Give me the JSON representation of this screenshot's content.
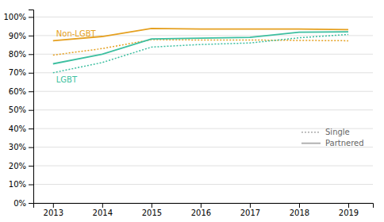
{
  "chart_data": {
    "type": "line",
    "x": [
      2013,
      2014,
      2015,
      2016,
      2017,
      2018,
      2019
    ],
    "xlim": [
      2012.6,
      2019.5
    ],
    "xticks": [
      2013,
      2014,
      2015,
      2016,
      2017,
      2018,
      2019
    ],
    "ylim": [
      0.0,
      1.04
    ],
    "yticks": [
      {
        "value": 0.0,
        "label": "0%"
      },
      {
        "value": 0.1,
        "label": "10%"
      },
      {
        "value": 0.2,
        "label": "20%"
      },
      {
        "value": 0.3,
        "label": "30%"
      },
      {
        "value": 0.4,
        "label": "40%"
      },
      {
        "value": 0.5,
        "label": "50%"
      },
      {
        "value": 0.6,
        "label": "60%"
      },
      {
        "value": 0.7,
        "label": "70%"
      },
      {
        "value": 0.8,
        "label": "80%"
      },
      {
        "value": 0.9,
        "label": "90%"
      },
      {
        "value": 1.0,
        "label": "100%"
      }
    ],
    "grid": true,
    "legend": "lower right",
    "series": [
      {
        "color": "#E5A020",
        "line_style": "solid",
        "values": [
          0.872,
          0.895,
          0.938,
          0.935,
          0.935,
          0.935,
          0.932
        ]
      },
      {
        "color": "#E5A020",
        "line_style": "dotted",
        "values": [
          0.795,
          0.83,
          0.878,
          0.876,
          0.876,
          0.874,
          0.872
        ]
      },
      {
        "color": "#3DBFA0",
        "line_style": "solid",
        "values": [
          0.748,
          0.8,
          0.882,
          0.886,
          0.89,
          0.918,
          0.92
        ]
      },
      {
        "color": "#3DBFA0",
        "line_style": "dotted",
        "values": [
          0.7,
          0.755,
          0.838,
          0.852,
          0.86,
          0.888,
          0.906
        ]
      }
    ],
    "annotations": [
      {
        "text": "Non-LGBT",
        "color": "#E5A020"
      },
      {
        "text": "LGBT",
        "color": "#3DBFA0"
      }
    ],
    "legend_entries": [
      {
        "label": "Single",
        "line_style": "dotted",
        "color": "#aaaaaa"
      },
      {
        "label": "Partnered",
        "line_style": "solid",
        "color": "#aaaaaa"
      }
    ]
  }
}
